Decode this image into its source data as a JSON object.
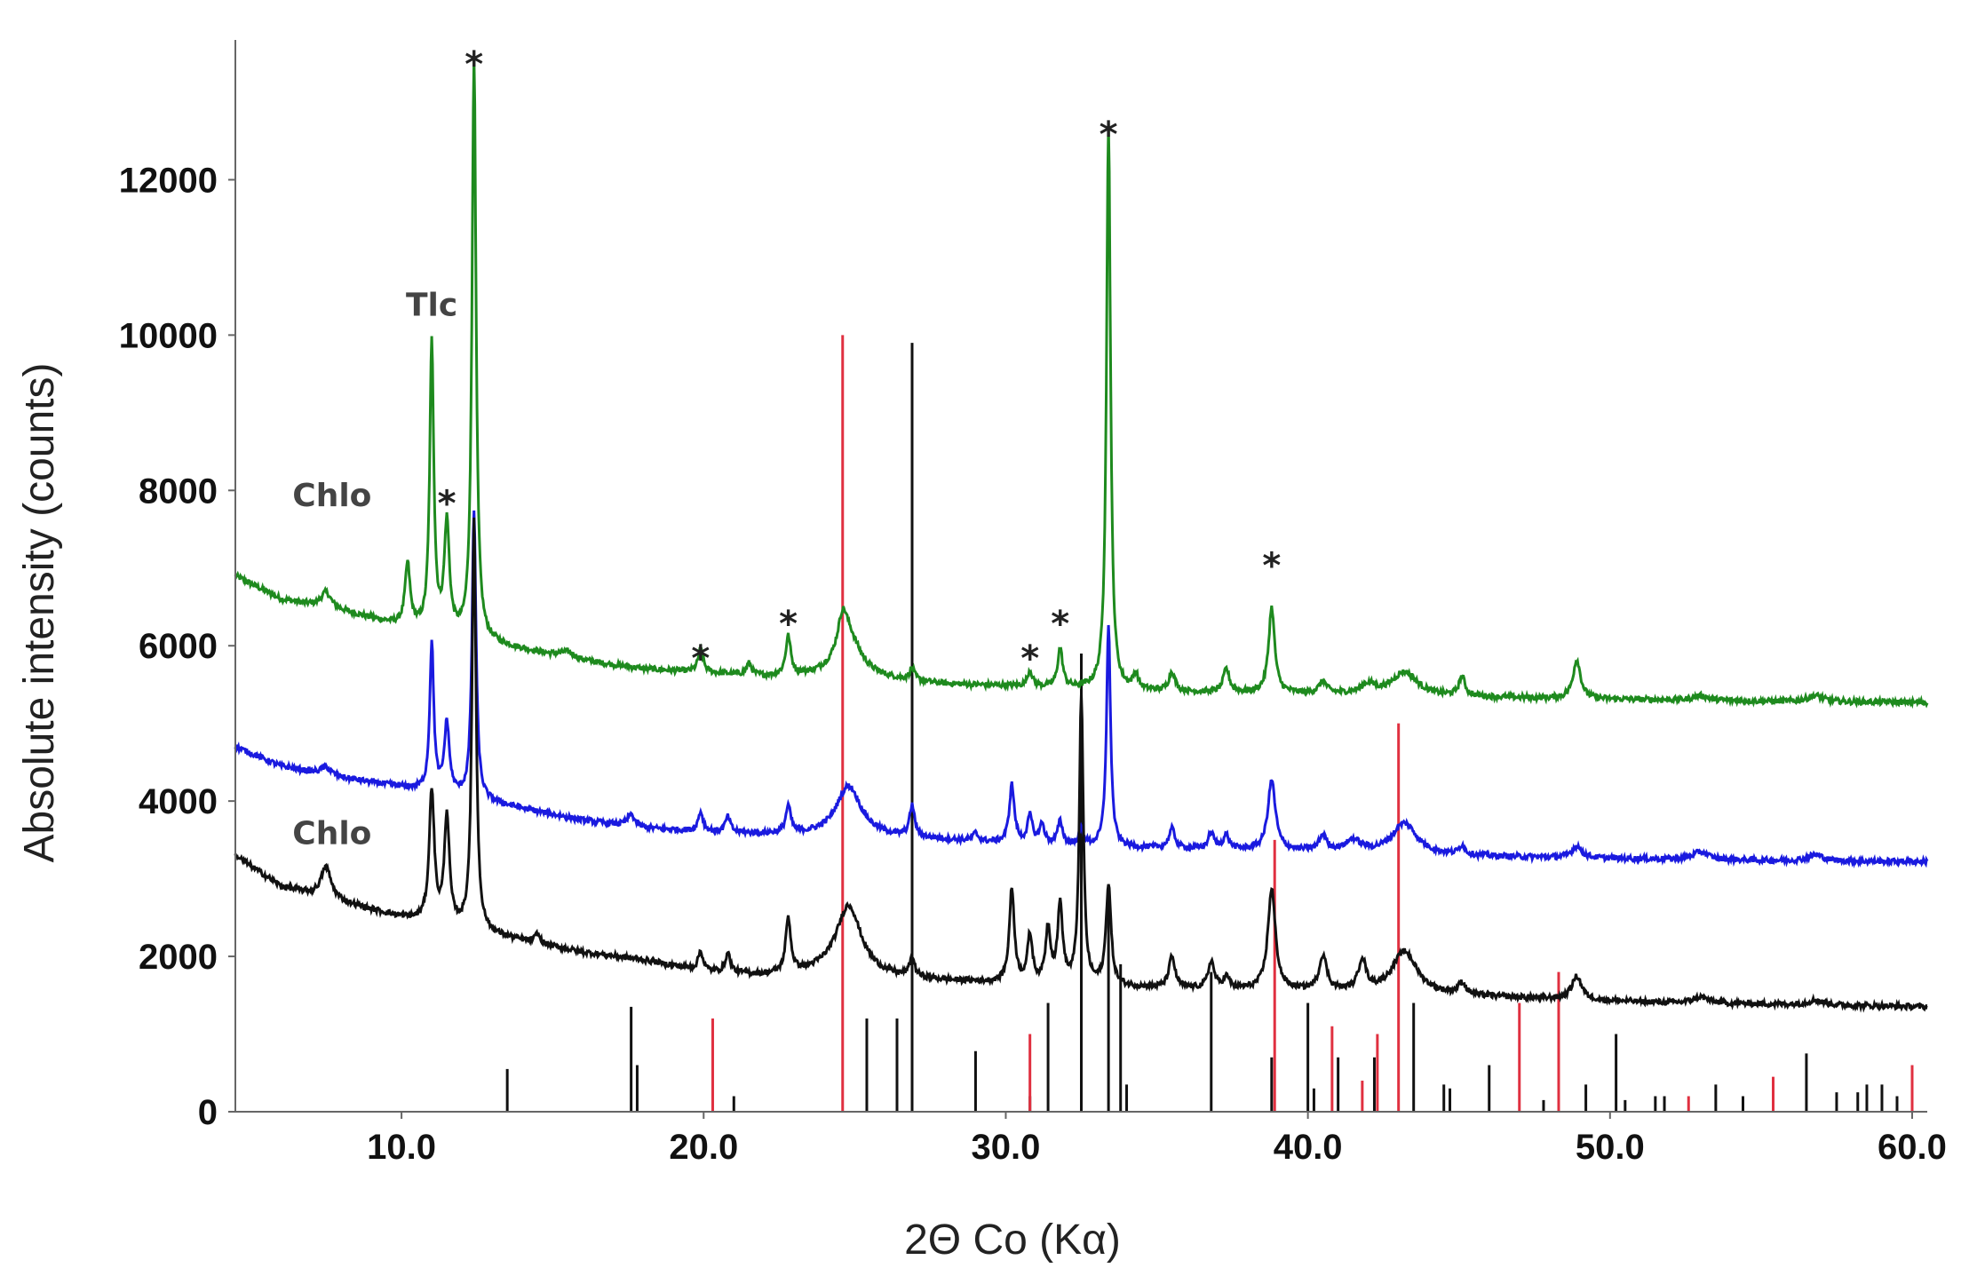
{
  "chart_data": {
    "type": "line",
    "title": "",
    "xlabel": "2Θ Co (Kα)",
    "ylabel": "Absolute intensity (counts)",
    "xlim": [
      4.5,
      60.5
    ],
    "ylim": [
      0,
      13800
    ],
    "x_ticks": [
      10.0,
      20.0,
      30.0,
      40.0,
      50.0,
      60.0
    ],
    "x_tick_labels": [
      "10.0",
      "20.0",
      "30.0",
      "40.0",
      "50.0",
      "60.0"
    ],
    "y_ticks": [
      0,
      2000,
      4000,
      6000,
      8000,
      10000,
      12000
    ],
    "y_tick_labels": [
      "0",
      "2000",
      "4000",
      "6000",
      "8000",
      "10000",
      "12000"
    ],
    "grid": false,
    "series": [
      {
        "color": "#1e8a1e",
        "baseline": [
          [
            4.5,
            6900
          ],
          [
            6,
            6600
          ],
          [
            8,
            6450
          ],
          [
            10,
            6250
          ],
          [
            12,
            6100
          ],
          [
            14,
            5950
          ],
          [
            16,
            5800
          ],
          [
            18,
            5700
          ],
          [
            20,
            5650
          ],
          [
            22,
            5600
          ],
          [
            24,
            5600
          ],
          [
            26,
            5560
          ],
          [
            28,
            5500
          ],
          [
            30,
            5480
          ],
          [
            32,
            5450
          ],
          [
            34,
            5420
          ],
          [
            36,
            5400
          ],
          [
            40,
            5380
          ],
          [
            44,
            5350
          ],
          [
            48,
            5320
          ],
          [
            52,
            5300
          ],
          [
            56,
            5280
          ],
          [
            60.5,
            5270
          ]
        ],
        "peaks": [
          [
            7.5,
            200,
            0.2
          ],
          [
            10.2,
            800,
            0.1
          ],
          [
            11.0,
            3700,
            0.08
          ],
          [
            11.5,
            1400,
            0.1
          ],
          [
            12.4,
            7500,
            0.08
          ],
          [
            15.5,
            80,
            0.3
          ],
          [
            19.9,
            300,
            0.1
          ],
          [
            21.5,
            150,
            0.1
          ],
          [
            22.8,
            500,
            0.1
          ],
          [
            24.6,
            450,
            0.2
          ],
          [
            24.8,
            500,
            0.5
          ],
          [
            26.9,
            150,
            0.1
          ],
          [
            30.8,
            200,
            0.1
          ],
          [
            31.8,
            500,
            0.1
          ],
          [
            33.4,
            7300,
            0.08
          ],
          [
            34.3,
            200,
            0.1
          ],
          [
            35.5,
            250,
            0.12
          ],
          [
            37.3,
            300,
            0.12
          ],
          [
            38.8,
            1100,
            0.12
          ],
          [
            40.5,
            150,
            0.15
          ],
          [
            42,
            120,
            0.3
          ],
          [
            43.2,
            300,
            0.5
          ],
          [
            45.1,
            250,
            0.12
          ],
          [
            48.9,
            500,
            0.15
          ],
          [
            53,
            60,
            0.3
          ],
          [
            56.8,
            80,
            0.3
          ]
        ]
      },
      {
        "color": "#1a1adf",
        "baseline": [
          [
            4.5,
            4700
          ],
          [
            6,
            4450
          ],
          [
            8,
            4300
          ],
          [
            10,
            4180
          ],
          [
            12,
            4050
          ],
          [
            14,
            3900
          ],
          [
            16,
            3750
          ],
          [
            18,
            3650
          ],
          [
            20,
            3600
          ],
          [
            22,
            3570
          ],
          [
            24,
            3550
          ],
          [
            26,
            3530
          ],
          [
            28,
            3500
          ],
          [
            30,
            3450
          ],
          [
            32,
            3420
          ],
          [
            34,
            3400
          ],
          [
            36,
            3380
          ],
          [
            40,
            3350
          ],
          [
            44,
            3300
          ],
          [
            48,
            3270
          ],
          [
            52,
            3250
          ],
          [
            56,
            3230
          ],
          [
            60.5,
            3220
          ]
        ],
        "peaks": [
          [
            7.5,
            100,
            0.2
          ],
          [
            11.0,
            1900,
            0.08
          ],
          [
            11.5,
            900,
            0.1
          ],
          [
            12.4,
            3700,
            0.08
          ],
          [
            17.6,
            150,
            0.15
          ],
          [
            19.9,
            250,
            0.1
          ],
          [
            20.8,
            200,
            0.1
          ],
          [
            22.8,
            350,
            0.1
          ],
          [
            24.8,
            650,
            0.5
          ],
          [
            26.9,
            400,
            0.1
          ],
          [
            29.0,
            100,
            0.1
          ],
          [
            30.2,
            750,
            0.1
          ],
          [
            30.8,
            350,
            0.1
          ],
          [
            31.2,
            250,
            0.1
          ],
          [
            31.8,
            300,
            0.1
          ],
          [
            32.5,
            200,
            0.1
          ],
          [
            33.4,
            2850,
            0.08
          ],
          [
            35.5,
            250,
            0.12
          ],
          [
            36.8,
            200,
            0.12
          ],
          [
            37.3,
            180,
            0.12
          ],
          [
            38.8,
            900,
            0.15
          ],
          [
            40.5,
            200,
            0.15
          ],
          [
            41.5,
            150,
            0.3
          ],
          [
            43.2,
            400,
            0.5
          ],
          [
            45.1,
            120,
            0.12
          ],
          [
            48.9,
            150,
            0.2
          ],
          [
            53,
            100,
            0.3
          ],
          [
            56.8,
            80,
            0.3
          ]
        ]
      },
      {
        "color": "#111111",
        "baseline": [
          [
            4.5,
            3300
          ],
          [
            6,
            2900
          ],
          [
            8,
            2700
          ],
          [
            10,
            2500
          ],
          [
            12,
            2350
          ],
          [
            14,
            2200
          ],
          [
            16,
            2050
          ],
          [
            18,
            1950
          ],
          [
            20,
            1800
          ],
          [
            22,
            1750
          ],
          [
            24,
            1780
          ],
          [
            26,
            1720
          ],
          [
            28,
            1680
          ],
          [
            30,
            1650
          ],
          [
            32,
            1620
          ],
          [
            34,
            1600
          ],
          [
            36,
            1580
          ],
          [
            40,
            1550
          ],
          [
            44,
            1500
          ],
          [
            48,
            1450
          ],
          [
            52,
            1400
          ],
          [
            56,
            1380
          ],
          [
            60.5,
            1350
          ]
        ],
        "peaks": [
          [
            7.5,
            400,
            0.2
          ],
          [
            11.0,
            1700,
            0.1
          ],
          [
            11.5,
            1400,
            0.1
          ],
          [
            12.4,
            5300,
            0.08
          ],
          [
            14.5,
            120,
            0.1
          ],
          [
            19.9,
            250,
            0.1
          ],
          [
            20.8,
            250,
            0.1
          ],
          [
            22.8,
            700,
            0.1
          ],
          [
            24.8,
            900,
            0.5
          ],
          [
            26.9,
            250,
            0.1
          ],
          [
            30.2,
            1200,
            0.1
          ],
          [
            30.8,
            600,
            0.1
          ],
          [
            31.4,
            700,
            0.1
          ],
          [
            31.8,
            1000,
            0.1
          ],
          [
            32.5,
            3700,
            0.08
          ],
          [
            33.4,
            1300,
            0.1
          ],
          [
            35.5,
            400,
            0.12
          ],
          [
            36.8,
            350,
            0.12
          ],
          [
            37.3,
            150,
            0.12
          ],
          [
            38.8,
            1300,
            0.15
          ],
          [
            40.5,
            450,
            0.15
          ],
          [
            41.8,
            400,
            0.15
          ],
          [
            43.2,
            550,
            0.5
          ],
          [
            45.1,
            150,
            0.15
          ],
          [
            48.9,
            300,
            0.2
          ],
          [
            53,
            80,
            0.3
          ],
          [
            56.8,
            60,
            0.3
          ]
        ]
      }
    ],
    "reference_lines": [
      {
        "color": "#111111",
        "positions": [
          [
            13.5,
            550
          ],
          [
            17.6,
            1350
          ],
          [
            17.8,
            600
          ],
          [
            21.0,
            200
          ],
          [
            25.4,
            1200
          ],
          [
            26.4,
            1200
          ],
          [
            26.9,
            9900
          ],
          [
            29.0,
            780
          ],
          [
            30.8,
            200
          ],
          [
            31.4,
            1400
          ],
          [
            32.5,
            5900
          ],
          [
            33.4,
            2800
          ],
          [
            33.8,
            1900
          ],
          [
            34.0,
            350
          ],
          [
            36.8,
            1800
          ],
          [
            38.8,
            700
          ],
          [
            40.0,
            1400
          ],
          [
            40.2,
            300
          ],
          [
            41.0,
            700
          ],
          [
            42.2,
            700
          ],
          [
            43.5,
            1400
          ],
          [
            44.5,
            350
          ],
          [
            44.7,
            300
          ],
          [
            46.0,
            600
          ],
          [
            47.8,
            150
          ],
          [
            49.2,
            350
          ],
          [
            50.2,
            1000
          ],
          [
            50.5,
            150
          ],
          [
            51.5,
            200
          ],
          [
            51.8,
            200
          ],
          [
            53.5,
            350
          ],
          [
            54.4,
            200
          ],
          [
            56.5,
            750
          ],
          [
            57.5,
            250
          ],
          [
            58.2,
            250
          ],
          [
            58.5,
            350
          ],
          [
            59.0,
            350
          ],
          [
            59.5,
            200
          ]
        ]
      },
      {
        "color": "#e03040",
        "positions": [
          [
            20.3,
            1200
          ],
          [
            24.6,
            10000
          ],
          [
            30.8,
            1000
          ],
          [
            38.9,
            3500
          ],
          [
            40.8,
            1100
          ],
          [
            41.8,
            400
          ],
          [
            42.3,
            1000
          ],
          [
            43.0,
            5000
          ],
          [
            47.0,
            1400
          ],
          [
            48.3,
            1800
          ],
          [
            52.6,
            200
          ],
          [
            55.4,
            450
          ],
          [
            60.0,
            600
          ]
        ]
      }
    ],
    "annotations": [
      {
        "text": "Chlo",
        "x": 7.7,
        "y": 7800,
        "color": "#444444"
      },
      {
        "text": "Tlc",
        "x": 11.0,
        "y": 10250,
        "color": "#444444"
      },
      {
        "text": "Chlo",
        "x": 7.7,
        "y": 3450,
        "color": "#444444"
      }
    ],
    "star_markers": [
      [
        11.5,
        8000
      ],
      [
        12.4,
        13650
      ],
      [
        19.9,
        6000
      ],
      [
        22.8,
        6450
      ],
      [
        30.8,
        6000
      ],
      [
        31.8,
        6450
      ],
      [
        33.4,
        12750
      ],
      [
        38.8,
        7200
      ]
    ],
    "star_symbol": "*"
  }
}
